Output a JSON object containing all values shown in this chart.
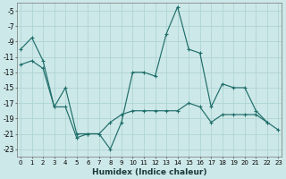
{
  "xlabel": "Humidex (Indice chaleur)",
  "x": [
    0,
    1,
    2,
    3,
    4,
    5,
    6,
    7,
    8,
    9,
    10,
    11,
    12,
    13,
    14,
    15,
    16,
    17,
    18,
    19,
    20,
    21,
    22,
    23
  ],
  "line_jagged": [
    -10,
    -8.5,
    -11.5,
    -17.5,
    -15,
    -21,
    -21,
    -21,
    -23,
    -19.5,
    -13,
    -13,
    -13.5,
    -8,
    -4.5,
    -10,
    -10.5,
    -17.5,
    -14.5,
    -15,
    -15,
    -18,
    -19.5,
    null
  ],
  "line_diagonal": [
    -12,
    -11.5,
    -12.5,
    -17.5,
    -17.5,
    -21.5,
    -21,
    -21,
    -19.5,
    -18.5,
    -18,
    -18,
    -18,
    -18,
    -18,
    -17,
    -17.5,
    -19.5,
    -18.5,
    -18.5,
    -18.5,
    -18.5,
    -19.5,
    -20.5
  ],
  "bg_color": "#cde8e8",
  "grid_color": "#afd4d4",
  "line_color": "#1e6e6a",
  "ylim": [
    -24,
    -4
  ],
  "yticks": [
    -23,
    -21,
    -19,
    -17,
    -15,
    -13,
    -11,
    -9,
    -7,
    -5
  ],
  "xlim": [
    -0.3,
    23.3
  ]
}
